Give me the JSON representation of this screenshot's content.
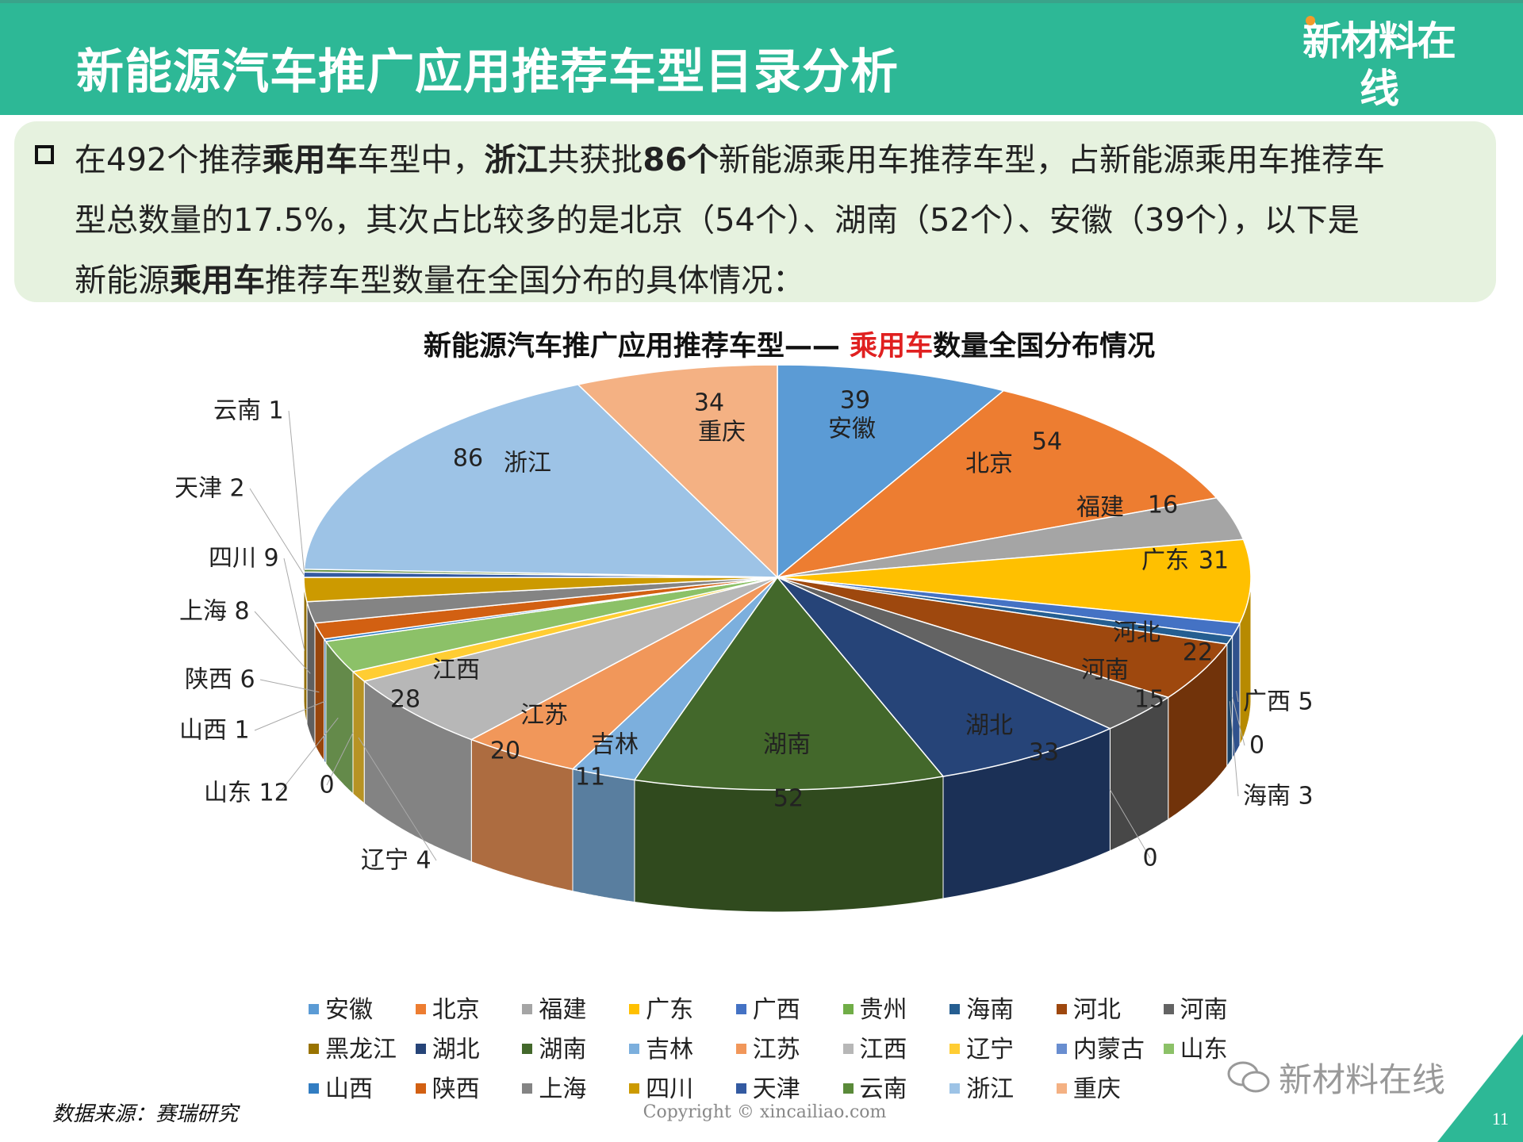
{
  "header": {
    "title": "新能源汽车推广应用推荐车型目录分析",
    "logo_cn": "新材料在线",
    "logo_en": "xincailiao.com",
    "brand_color": "#2DB896"
  },
  "summary": {
    "line1": [
      "在492个推荐",
      "乘用车",
      "车型中，",
      "浙江",
      "共获批",
      "86个",
      "新能源乘用车推荐车型，占新能源乘用车推荐车"
    ],
    "line2": "型总数量的17.5%，其次占比较多的是北京（54个）、湖南（52个）、安徽（39个），以下是",
    "line3": [
      "新能源",
      "乘用车",
      "推荐车型数量在全国分布的具体情况："
    ]
  },
  "chart_data": {
    "type": "pie",
    "style": "3d",
    "title_prefix": "新能源汽车推广应用推荐车型—— ",
    "title_highlight": "乘用车",
    "title_suffix": "数量全国分布情况",
    "title_highlight_color": "#E02020",
    "legend_position": "bottom",
    "categories": [
      "安徽",
      "北京",
      "福建",
      "广东",
      "广西",
      "贵州",
      "海南",
      "河北",
      "河南",
      "黑龙江",
      "湖北",
      "湖南",
      "吉林",
      "江苏",
      "江西",
      "辽宁",
      "内蒙古",
      "山东",
      "山西",
      "陕西",
      "上海",
      "四川",
      "天津",
      "云南",
      "浙江",
      "重庆"
    ],
    "values": [
      39,
      54,
      16,
      31,
      5,
      0,
      3,
      22,
      15,
      0,
      33,
      52,
      11,
      20,
      28,
      4,
      0,
      12,
      1,
      6,
      8,
      9,
      2,
      1,
      86,
      34
    ],
    "colors": [
      "#5B9BD5",
      "#ED7D31",
      "#A5A5A5",
      "#FFC000",
      "#4472C4",
      "#70AD47",
      "#255E91",
      "#9E480E",
      "#636363",
      "#997300",
      "#264478",
      "#43682B",
      "#7CAFDD",
      "#F1975A",
      "#B7B7B7",
      "#FFCD33",
      "#698ED0",
      "#8CC168",
      "#327DC2",
      "#D26012",
      "#848484",
      "#CC9A00",
      "#335AA1",
      "#5A8A39",
      "#9DC3E6",
      "#F4B183"
    ],
    "total": 492
  },
  "footer": {
    "source": "数据来源：赛瑞研究",
    "copyright": "Copyright © xincailiao.com",
    "wechat": "新材料在线",
    "page_number": "11"
  },
  "watermark": {
    "cn": "新材料在线",
    "en": "xincailiao.com"
  }
}
